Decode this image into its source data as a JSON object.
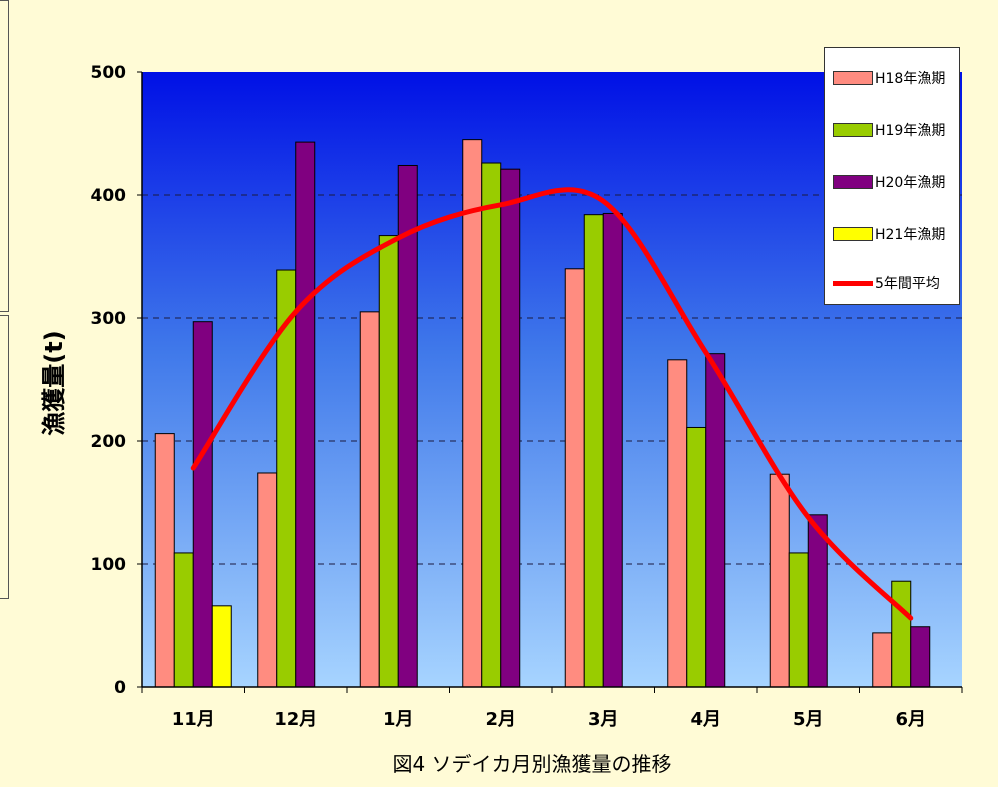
{
  "chart_data": {
    "type": "bar",
    "title": "図4 ソデイカ月別漁獲量の推移",
    "xlabel": "",
    "ylabel": "漁獲量(t)",
    "categories": [
      "11月",
      "12月",
      "1月",
      "2月",
      "3月",
      "4月",
      "5月",
      "6月"
    ],
    "ylim": [
      0,
      500
    ],
    "yticks": [
      0,
      100,
      200,
      300,
      400,
      500
    ],
    "grid": true,
    "legend_position": "top-right",
    "series": [
      {
        "name": "H18年漁期",
        "type": "bar",
        "color": "#ff8c80",
        "values": [
          206,
          174,
          305,
          445,
          340,
          266,
          173,
          44
        ]
      },
      {
        "name": "H19年漁期",
        "type": "bar",
        "color": "#99cc00",
        "values": [
          109,
          339,
          367,
          426,
          384,
          211,
          109,
          86
        ]
      },
      {
        "name": "H20年漁期",
        "type": "bar",
        "color": "#800080",
        "values": [
          297,
          443,
          424,
          421,
          385,
          271,
          140,
          49
        ]
      },
      {
        "name": "H21年漁期",
        "type": "bar",
        "color": "#ffff00",
        "values": [
          66,
          null,
          null,
          null,
          null,
          null,
          null,
          null
        ]
      },
      {
        "name": "5年間平均",
        "type": "line",
        "color": "#ff0000",
        "values": [
          178,
          305,
          365,
          392,
          395,
          272,
          138,
          56
        ]
      }
    ]
  }
}
